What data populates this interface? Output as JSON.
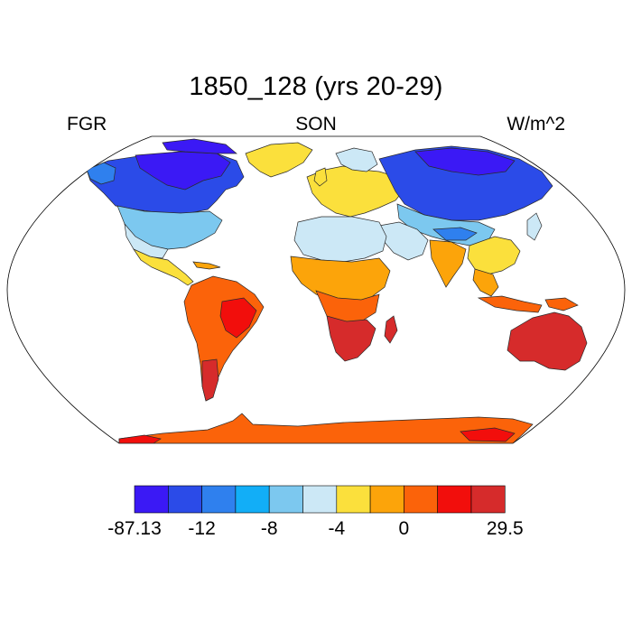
{
  "title": "1850_128 (yrs 20-29)",
  "left_label": "FGR",
  "center_label": "SON",
  "right_label": "W/m^2",
  "colorbar": {
    "colors": [
      "#3b19f5",
      "#2b4be8",
      "#2f80ee",
      "#12aef7",
      "#7cc8ef",
      "#cce8f6",
      "#fbe03c",
      "#fca40a",
      "#fb630a",
      "#f20e0c",
      "#d62b2b"
    ],
    "labels": [
      "-87.13",
      "-12",
      "-8",
      "-4",
      "0",
      "29.5"
    ]
  },
  "map": {
    "projection": "Robinson",
    "variable": "FGR",
    "season": "SON",
    "units": "W/m^2",
    "regions": [
      {
        "name": "Canada / Arctic North America",
        "color": "#3b19f5"
      },
      {
        "name": "United States",
        "color": "#7cc8ef"
      },
      {
        "name": "Greenland",
        "color": "#fbe03c"
      },
      {
        "name": "Europe",
        "color": "#fbe03c"
      },
      {
        "name": "Siberia / Northern Asia",
        "color": "#2b4be8"
      },
      {
        "name": "Central Asia",
        "color": "#7cc8ef"
      },
      {
        "name": "Sahara / North Africa",
        "color": "#cce8f6"
      },
      {
        "name": "Central Africa",
        "color": "#fca40a"
      },
      {
        "name": "Southern Africa",
        "color": "#d62b2b"
      },
      {
        "name": "India / South Asia",
        "color": "#fca40a"
      },
      {
        "name": "South America",
        "color": "#fb630a"
      },
      {
        "name": "Australia",
        "color": "#d62b2b"
      },
      {
        "name": "Antarctica",
        "color": "#fb630a"
      }
    ]
  }
}
